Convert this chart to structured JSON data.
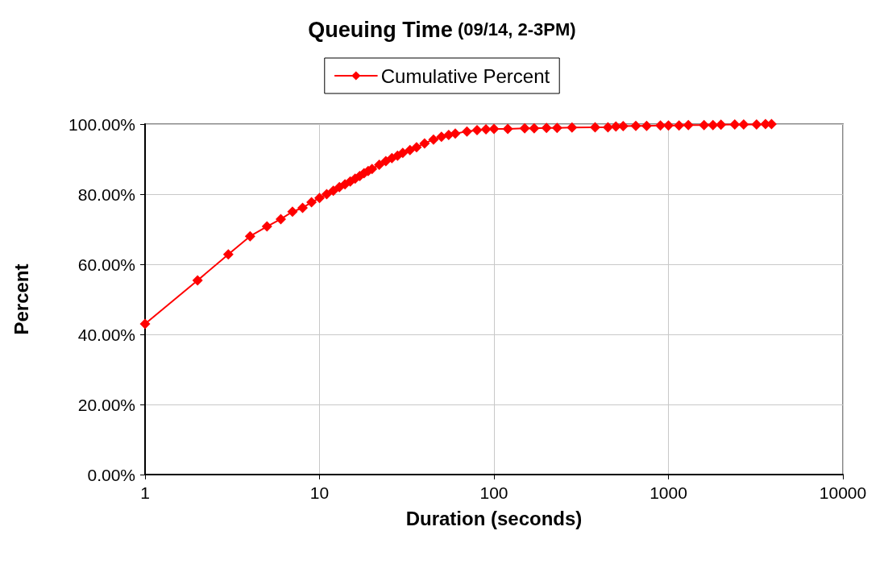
{
  "chart_data": {
    "type": "line",
    "title": "Queuing Time",
    "subtitle": "(09/14, 2-3PM)",
    "xlabel": "Duration (seconds)",
    "ylabel": "Percent",
    "log": "x",
    "grid": true,
    "legend": "top",
    "marker": "diamond",
    "line_style": "solid",
    "xlim": [
      1,
      10000
    ],
    "xticks": [
      1,
      10,
      100,
      1000,
      10000
    ],
    "ylim": [
      0,
      100
    ],
    "yticks": [
      {
        "value": 0,
        "label": "0.00%"
      },
      {
        "value": 20,
        "label": "20.00%"
      },
      {
        "value": 40,
        "label": "40.00%"
      },
      {
        "value": 60,
        "label": "60.00%"
      },
      {
        "value": 80,
        "label": "80.00%"
      },
      {
        "value": 100,
        "label": "100.00%"
      }
    ],
    "series": [
      {
        "name": "Cumulative Percent",
        "color": "#ff0000",
        "x": [
          1,
          2,
          3,
          4,
          5,
          6,
          7,
          8,
          9,
          10,
          11,
          12,
          13,
          14,
          15,
          16,
          17,
          18,
          19,
          20,
          22,
          24,
          26,
          28,
          30,
          33,
          36,
          40,
          45,
          50,
          55,
          60,
          70,
          80,
          90,
          100,
          120,
          150,
          170,
          200,
          230,
          280,
          380,
          450,
          500,
          550,
          650,
          750,
          900,
          1000,
          1150,
          1300,
          1600,
          1800,
          2000,
          2400,
          2700,
          3200,
          3600,
          3900
        ],
        "values": [
          43,
          55.4,
          62.8,
          68,
          70.8,
          72.9,
          75,
          76.1,
          77.7,
          78.9,
          80,
          81,
          82,
          82.8,
          83.6,
          84.4,
          85.2,
          86,
          86.6,
          87.2,
          88.4,
          89.4,
          90.3,
          91,
          91.8,
          92.6,
          93.4,
          94.5,
          95.6,
          96.4,
          96.9,
          97.3,
          97.9,
          98.3,
          98.5,
          98.6,
          98.6,
          98.8,
          98.8,
          98.9,
          98.9,
          99,
          99.1,
          99.1,
          99.3,
          99.4,
          99.5,
          99.5,
          99.6,
          99.6,
          99.6,
          99.7,
          99.7,
          99.7,
          99.8,
          99.9,
          99.9,
          99.9,
          100,
          100
        ]
      }
    ]
  }
}
